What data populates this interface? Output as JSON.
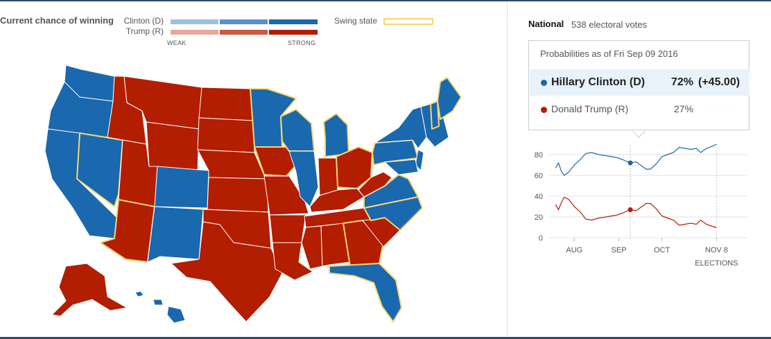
{
  "header": {
    "title": "Current chance of winning",
    "clinton_label": "Clinton (D)",
    "trump_label": "Trump (R)",
    "weak_label": "WEAK",
    "strong_label": "STRONG",
    "swing_label": "Swing state"
  },
  "colors": {
    "clinton_scale": [
      "#9dc1dd",
      "#5a93c8",
      "#1a68ad"
    ],
    "trump_scale": [
      "#e6a89a",
      "#c95a44",
      "#b31d00"
    ],
    "dem_strong": "#1a68ad",
    "rep_strong": "#b31d00",
    "swing": "#f7d774"
  },
  "national": {
    "title": "National",
    "votes": "538 electoral votes",
    "as_of": "Probabilities as of Fri Sep 09 2016",
    "candidates": [
      {
        "name": "Hillary Clinton (D)",
        "pct": "72%",
        "change": "(+45.00)"
      },
      {
        "name": "Donald Trump (R)",
        "pct": "27%",
        "change": ""
      }
    ]
  },
  "chart_data": {
    "type": "line",
    "title": "",
    "xlabel": "",
    "ylabel": "",
    "ylim": [
      0,
      90
    ],
    "yticks": [
      "80",
      "60",
      "40",
      "20",
      "0"
    ],
    "xticks": [
      {
        "date": "2016-08-01",
        "label": "AUG"
      },
      {
        "date": "2016-09-01",
        "label": "SEP"
      },
      {
        "date": "2016-10-01",
        "label": "OCT"
      },
      {
        "date": "2016-11-08",
        "label": "NOV 8",
        "sublabel": "ELECTIONS"
      }
    ],
    "xlim": [
      "2016-07-14",
      "2016-11-30"
    ],
    "grid": true,
    "marker_date": "2016-09-09",
    "series": [
      {
        "name": "Hillary Clinton (D)",
        "color": "#1a68ad",
        "marker_value": 72,
        "points": [
          [
            "2016-07-19",
            67
          ],
          [
            "2016-07-21",
            72
          ],
          [
            "2016-07-23",
            64
          ],
          [
            "2016-07-25",
            60
          ],
          [
            "2016-07-28",
            63
          ],
          [
            "2016-08-01",
            70
          ],
          [
            "2016-08-05",
            75
          ],
          [
            "2016-08-09",
            81
          ],
          [
            "2016-08-13",
            82
          ],
          [
            "2016-08-18",
            80
          ],
          [
            "2016-08-23",
            79
          ],
          [
            "2016-08-27",
            78
          ],
          [
            "2016-08-31",
            77
          ],
          [
            "2016-09-04",
            75
          ],
          [
            "2016-09-09",
            72
          ],
          [
            "2016-09-13",
            73
          ],
          [
            "2016-09-17",
            69
          ],
          [
            "2016-09-20",
            66
          ],
          [
            "2016-09-23",
            66
          ],
          [
            "2016-09-27",
            71
          ],
          [
            "2016-10-01",
            78
          ],
          [
            "2016-10-05",
            80
          ],
          [
            "2016-10-09",
            82
          ],
          [
            "2016-10-13",
            87
          ],
          [
            "2016-10-17",
            86
          ],
          [
            "2016-10-21",
            85
          ],
          [
            "2016-10-25",
            86
          ],
          [
            "2016-10-28",
            82
          ],
          [
            "2016-11-01",
            86
          ],
          [
            "2016-11-05",
            88
          ],
          [
            "2016-11-08",
            90
          ]
        ]
      },
      {
        "name": "Donald Trump (R)",
        "color": "#b31d00",
        "marker_value": 27,
        "points": [
          [
            "2016-07-19",
            32
          ],
          [
            "2016-07-21",
            27
          ],
          [
            "2016-07-23",
            34
          ],
          [
            "2016-07-25",
            39
          ],
          [
            "2016-07-28",
            37
          ],
          [
            "2016-08-01",
            30
          ],
          [
            "2016-08-05",
            25
          ],
          [
            "2016-08-09",
            18
          ],
          [
            "2016-08-13",
            17
          ],
          [
            "2016-08-18",
            19
          ],
          [
            "2016-08-23",
            20
          ],
          [
            "2016-08-27",
            21
          ],
          [
            "2016-08-31",
            22
          ],
          [
            "2016-09-04",
            24
          ],
          [
            "2016-09-09",
            27
          ],
          [
            "2016-09-13",
            26
          ],
          [
            "2016-09-17",
            30
          ],
          [
            "2016-09-20",
            33
          ],
          [
            "2016-09-23",
            33
          ],
          [
            "2016-09-27",
            28
          ],
          [
            "2016-10-01",
            21
          ],
          [
            "2016-10-05",
            19
          ],
          [
            "2016-10-09",
            17
          ],
          [
            "2016-10-13",
            12
          ],
          [
            "2016-10-17",
            13
          ],
          [
            "2016-10-21",
            14
          ],
          [
            "2016-10-25",
            13
          ],
          [
            "2016-10-28",
            17
          ],
          [
            "2016-11-01",
            13
          ],
          [
            "2016-11-05",
            11
          ],
          [
            "2016-11-08",
            10
          ]
        ]
      }
    ]
  }
}
